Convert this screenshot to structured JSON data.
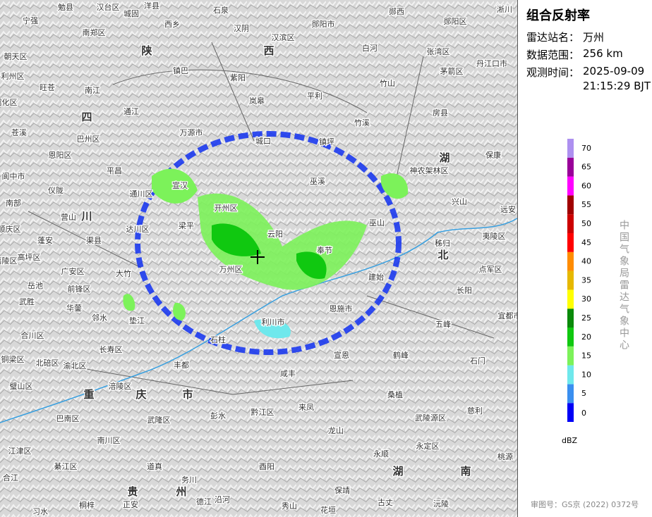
{
  "sidebar": {
    "title": "组合反射率",
    "station_label": "雷达站名：",
    "station": "万州",
    "range_label": "数据范围：",
    "range": "256 km",
    "time_label": "观测时间：",
    "date": "2025-09-09",
    "time": "21:15:29 BJT",
    "vertical_text": "中国气象局雷达气象中心",
    "approval": "审图号：GS京 (2022) 0372号"
  },
  "legend": {
    "unit": "dBZ",
    "ticks": [
      0,
      5,
      10,
      15,
      20,
      25,
      30,
      35,
      40,
      45,
      50,
      55,
      60,
      65,
      70
    ],
    "colors": [
      "#0000f6",
      "#3a8ff0",
      "#6fe8ec",
      "#7cf25a",
      "#10c810",
      "#0a8a0a",
      "#ffff00",
      "#e6b800",
      "#ff8c00",
      "#ff0000",
      "#cc0000",
      "#a00000",
      "#ff00ff",
      "#990099",
      "#ad90f0"
    ]
  },
  "map": {
    "places": [
      "勉县",
      "汉台区",
      "洋县",
      "石泉",
      "郧西",
      "城固",
      "宁强",
      "南郑区",
      "西乡",
      "汉阴",
      "汉滨区",
      "郧阳市",
      "郧阳区",
      "淅川",
      "朝天区",
      "陕",
      "西",
      "白河",
      "张湾区",
      "丹江口市",
      "利州区",
      "旺苍",
      "镇巴",
      "紫阳",
      "茅箭区",
      "南江",
      "岚皋",
      "平利",
      "竹山",
      "昭化区",
      "通江",
      "四",
      "竹溪",
      "房县",
      "苍溪",
      "万源市",
      "巴州区",
      "城口",
      "镇坪",
      "恩阳区",
      "湖",
      "保康",
      "阆中市",
      "平昌",
      "宣汉",
      "巫溪",
      "神农架林区",
      "仪陇",
      "通川区",
      "兴山",
      "南部",
      "营山",
      "川",
      "开州区",
      "远安",
      "顺庆区",
      "达川区",
      "梁平",
      "云阳",
      "巫山",
      "秭归",
      "夷陵区",
      "蓬安",
      "渠县",
      "奉节",
      "高坪区",
      "万州区",
      "北",
      "嘉陵区",
      "广安区",
      "大竹",
      "建始",
      "点军区",
      "前锋区",
      "岳池",
      "长阳",
      "武胜",
      "华蓥",
      "邻水",
      "恩施市",
      "宜都市",
      "垫江",
      "利川市",
      "五峰",
      "合川区",
      "石柱",
      "长寿区",
      "鹤峰",
      "宣恩",
      "铜梁区",
      "北碚区",
      "渝北区",
      "丰都",
      "石门",
      "璧山区",
      "重",
      "庆",
      "市",
      "涪陵区",
      "咸丰",
      "桑植",
      "巴南区",
      "武隆区",
      "彭水",
      "黔江区",
      "来凤",
      "武陵源区",
      "慈利",
      "南川区",
      "龙山",
      "永定区",
      "江津区",
      "永顺",
      "綦江区",
      "道真",
      "酉阳",
      "湖",
      "南",
      "桃源",
      "合江",
      "务川",
      "贵",
      "州",
      "保靖",
      "沅陵",
      "桐梓",
      "正安",
      "德江",
      "沿河",
      "秀山",
      "花垣",
      "古丈",
      "习水"
    ]
  }
}
